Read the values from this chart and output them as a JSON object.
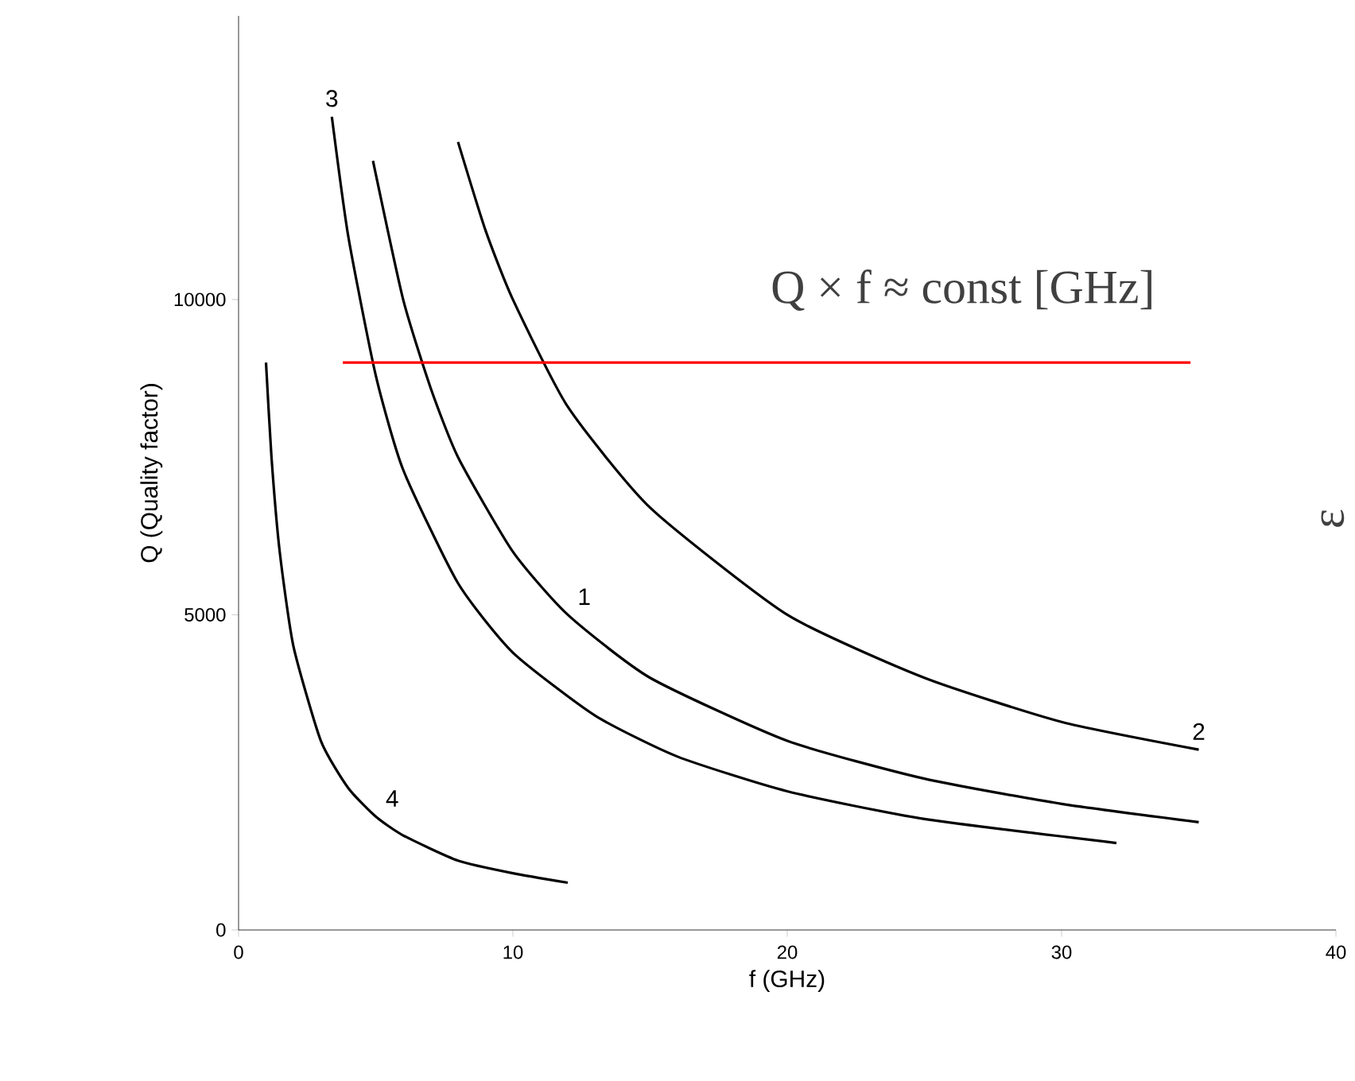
{
  "chart_data": {
    "type": "line",
    "xlabel": "f (GHz)",
    "ylabel": "Q (Quality factor)",
    "xlim": [
      0,
      40
    ],
    "ylim": [
      0,
      14500
    ],
    "xticks": [
      0,
      10,
      20,
      30,
      40
    ],
    "yticks": [
      0,
      5000,
      10000
    ],
    "grid": false,
    "legend": false,
    "marker": "none",
    "line_style": "solid",
    "annotations": [
      "Q × f ≈ const [GHz]",
      "ε"
    ],
    "series": [
      {
        "name": "1",
        "color": "#000000",
        "x": [
          4.9,
          6,
          7,
          8,
          10,
          12,
          15,
          20,
          25,
          30,
          35
        ],
        "values": [
          12200,
          10000,
          8600,
          7500,
          6000,
          5000,
          4000,
          3000,
          2400,
          2000,
          1710
        ]
      },
      {
        "name": "2",
        "color": "#000000",
        "x": [
          8,
          9,
          10,
          12,
          15,
          20,
          25,
          30,
          35
        ],
        "values": [
          12500,
          11100,
          10000,
          8300,
          6700,
          5000,
          4000,
          3300,
          2860
        ]
      },
      {
        "name": "3",
        "color": "#000000",
        "x": [
          3.4,
          4,
          5,
          6,
          8,
          10,
          13,
          16,
          20,
          25,
          32
        ],
        "values": [
          12900,
          11000,
          8800,
          7300,
          5500,
          4400,
          3400,
          2750,
          2200,
          1760,
          1380
        ]
      },
      {
        "name": "4",
        "color": "#000000",
        "x": [
          1,
          1.2,
          1.5,
          2,
          3,
          4,
          5,
          6,
          8,
          10,
          12
        ],
        "values": [
          9000,
          7500,
          6000,
          4500,
          3000,
          2250,
          1800,
          1500,
          1100,
          900,
          750
        ]
      },
      {
        "color": "#ff0000",
        "x": [
          3.8,
          34.7
        ],
        "values": [
          9000,
          9000
        ]
      }
    ]
  }
}
